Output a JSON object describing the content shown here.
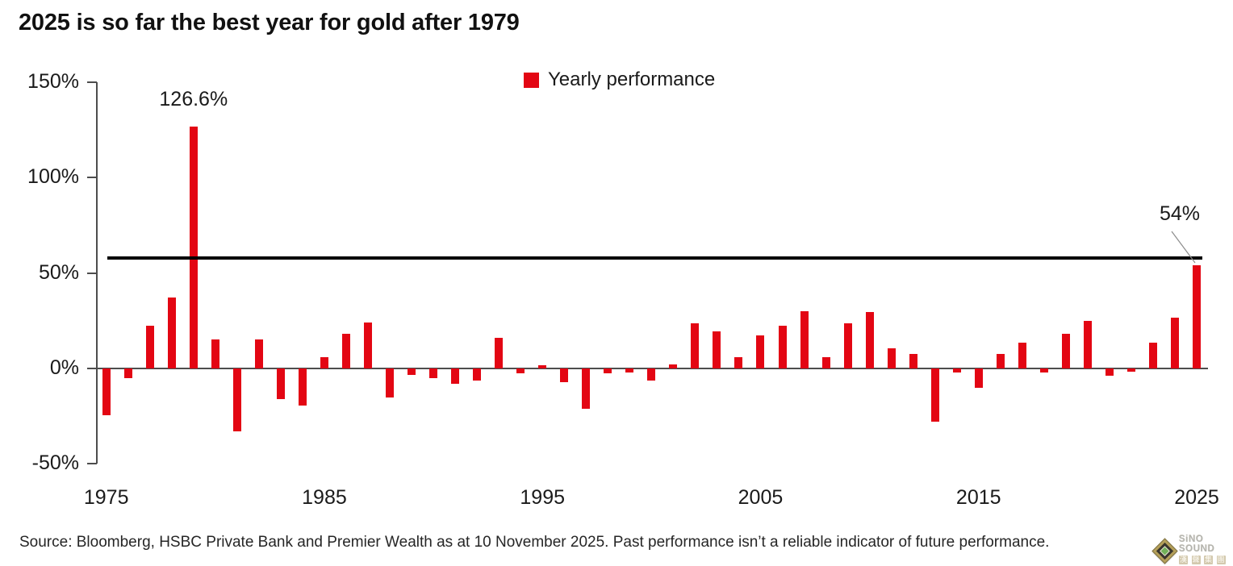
{
  "title": "2025 is so far the best year for gold after 1979",
  "legend": {
    "label": "Yearly performance",
    "swatch_color": "#e30613"
  },
  "source": "Source: Bloomberg, HSBC Private Bank and Premier Wealth as at 10 November 2025. Past performance isn’t a reliable indicator of future performance.",
  "watermark": {
    "brand": "SiNO SOUND",
    "chinese": [
      "漢",
      "聲",
      "集",
      "團"
    ]
  },
  "chart_data": {
    "type": "bar",
    "series_name": "Yearly performance",
    "bar_color": "#e30613",
    "x": [
      1975,
      1976,
      1977,
      1978,
      1979,
      1980,
      1981,
      1982,
      1983,
      1984,
      1985,
      1986,
      1987,
      1988,
      1989,
      1990,
      1991,
      1992,
      1993,
      1994,
      1995,
      1996,
      1997,
      1998,
      1999,
      2000,
      2001,
      2002,
      2003,
      2004,
      2005,
      2006,
      2007,
      2008,
      2009,
      2010,
      2011,
      2012,
      2013,
      2014,
      2015,
      2016,
      2017,
      2018,
      2019,
      2020,
      2021,
      2022,
      2023,
      2024,
      2025
    ],
    "values": [
      -24.5,
      -5,
      22.5,
      37,
      126.6,
      15,
      -33,
      15,
      -16,
      -19.5,
      6,
      18,
      24,
      -15,
      -3.5,
      -5,
      -8,
      -6.5,
      16,
      -2.5,
      1.5,
      -7,
      -21,
      -2.5,
      -2,
      -6.5,
      2,
      23.5,
      19.5,
      6,
      17.5,
      22.5,
      30,
      6,
      23.5,
      29.5,
      10.5,
      7.5,
      -28,
      -2,
      -10,
      7.5,
      13.5,
      -2,
      18,
      25,
      -4,
      -1.5,
      13.5,
      26.5,
      54
    ],
    "ylim": [
      -50,
      150
    ],
    "yticks": [
      150,
      100,
      50,
      0,
      -50
    ],
    "ytick_labels": [
      "150%",
      "100%",
      "50%",
      "0%",
      "-50%"
    ],
    "xticks": [
      1975,
      1985,
      1995,
      2005,
      2015,
      2025
    ],
    "grid": false,
    "legend_position": "top-center",
    "reference_line": {
      "value": 58,
      "color": "#000000"
    },
    "annotations": [
      {
        "year": 1979,
        "label": "126.6%"
      },
      {
        "year": 2025,
        "label": "54%"
      }
    ]
  }
}
